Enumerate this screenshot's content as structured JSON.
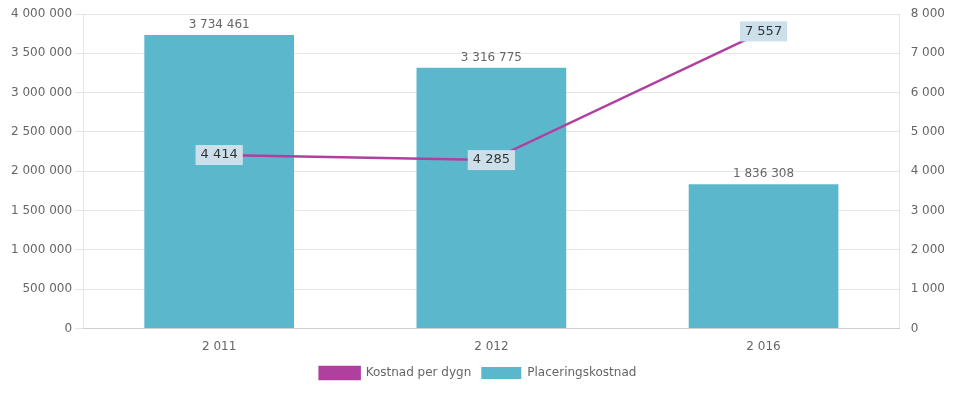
{
  "chart_data": {
    "type": "bar",
    "categories": [
      "2 011",
      "2 012",
      "2 016"
    ],
    "series": [
      {
        "name": "Placeringskostnad",
        "type": "bar",
        "color": "#5bb8cc",
        "values": [
          3734461,
          3316775,
          1836308
        ],
        "value_labels": [
          "3 734 461",
          "3 316 775",
          "1 836 308"
        ]
      },
      {
        "name": "Kostnad per dygn",
        "type": "line",
        "color": "#b040a0",
        "axis": "y2",
        "values": [
          4414,
          4285,
          7557
        ],
        "value_labels": [
          "4 414",
          "4 285",
          "7 557"
        ]
      }
    ],
    "ylim": [
      0,
      4000000
    ],
    "yticks": [
      0,
      {
        "value": 500000,
        "label": "500 000"
      },
      {
        "value": 1000000,
        "label": "1 000 000"
      },
      {
        "value": 1500000,
        "label": "1 500 000"
      },
      {
        "value": 2000000,
        "label": "2 000 000"
      },
      {
        "value": 2500000,
        "label": "2 500 000"
      },
      {
        "value": 3000000,
        "label": "3 000 000"
      },
      {
        "value": 3500000,
        "label": "3 500 000"
      },
      {
        "value": 4000000,
        "label": "4 000 000"
      }
    ],
    "y2lim": [
      0,
      8000
    ],
    "y2ticks": [
      0,
      {
        "value": 1000,
        "label": "1 000"
      },
      {
        "value": 2000,
        "label": "2 000"
      },
      {
        "value": 3000,
        "label": "3 000"
      },
      {
        "value": 4000,
        "label": "4 000"
      },
      {
        "value": 5000,
        "label": "5 000"
      },
      {
        "value": 6000,
        "label": "6 000"
      },
      {
        "value": 7000,
        "label": "7 000"
      },
      {
        "value": 8000,
        "label": "8 000"
      }
    ],
    "grid": true,
    "legend": "bottom",
    "data_labels": true
  }
}
